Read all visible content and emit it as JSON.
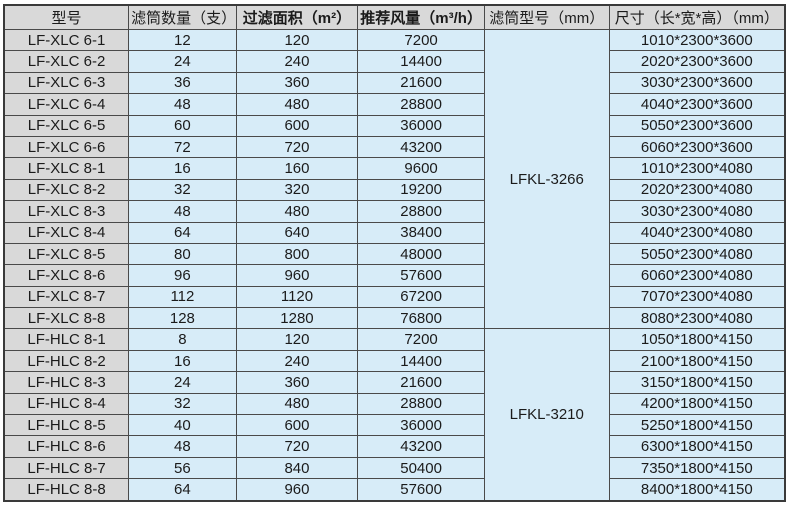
{
  "colors": {
    "header_bg": "#d9d9d9",
    "model_col_bg": "#d9d9d9",
    "data_cell_bg": "#d7ecf8",
    "grid_border": "#4a4a4a",
    "outer_border": "#3a3a3a",
    "text": "#1b1b1b",
    "page_bg": "#ffffff"
  },
  "chart_data": {
    "type": "table",
    "columns": [
      "型号",
      "滤筒数量（支）",
      "过滤面积（m²）",
      "推荐风量（m³/h）",
      "滤筒型号（mm）",
      "尺寸（长*宽*高）（mm）"
    ],
    "bold_columns": [
      2,
      3
    ],
    "groups": [
      {
        "cartridge_model": "LFKL-3266",
        "rows": [
          [
            "LF-XLC 6-1",
            "12",
            "120",
            "7200",
            "1010*2300*3600"
          ],
          [
            "LF-XLC 6-2",
            "24",
            "240",
            "14400",
            "2020*2300*3600"
          ],
          [
            "LF-XLC 6-3",
            "36",
            "360",
            "21600",
            "3030*2300*3600"
          ],
          [
            "LF-XLC 6-4",
            "48",
            "480",
            "28800",
            "4040*2300*3600"
          ],
          [
            "LF-XLC 6-5",
            "60",
            "600",
            "36000",
            "5050*2300*3600"
          ],
          [
            "LF-XLC 6-6",
            "72",
            "720",
            "43200",
            "6060*2300*3600"
          ],
          [
            "LF-XLC 8-1",
            "16",
            "160",
            "9600",
            "1010*2300*4080"
          ],
          [
            "LF-XLC 8-2",
            "32",
            "320",
            "19200",
            "2020*2300*4080"
          ],
          [
            "LF-XLC 8-3",
            "48",
            "480",
            "28800",
            "3030*2300*4080"
          ],
          [
            "LF-XLC 8-4",
            "64",
            "640",
            "38400",
            "4040*2300*4080"
          ],
          [
            "LF-XLC 8-5",
            "80",
            "800",
            "48000",
            "5050*2300*4080"
          ],
          [
            "LF-XLC 8-6",
            "96",
            "960",
            "57600",
            "6060*2300*4080"
          ],
          [
            "LF-XLC 8-7",
            "112",
            "1120",
            "67200",
            "7070*2300*4080"
          ],
          [
            "LF-XLC 8-8",
            "128",
            "1280",
            "76800",
            "8080*2300*4080"
          ]
        ]
      },
      {
        "cartridge_model": "LFKL-3210",
        "rows": [
          [
            "LF-HLC 8-1",
            "8",
            "120",
            "7200",
            "1050*1800*4150"
          ],
          [
            "LF-HLC 8-2",
            "16",
            "240",
            "14400",
            "2100*1800*4150"
          ],
          [
            "LF-HLC 8-3",
            "24",
            "360",
            "21600",
            "3150*1800*4150"
          ],
          [
            "LF-HLC 8-4",
            "32",
            "480",
            "28800",
            "4200*1800*4150"
          ],
          [
            "LF-HLC 8-5",
            "40",
            "600",
            "36000",
            "5250*1800*4150"
          ],
          [
            "LF-HLC 8-6",
            "48",
            "720",
            "43200",
            "6300*1800*4150"
          ],
          [
            "LF-HLC 8-7",
            "56",
            "840",
            "50400",
            "7350*1800*4150"
          ],
          [
            "LF-HLC 8-8",
            "64",
            "960",
            "57600",
            "8400*1800*4150"
          ]
        ]
      }
    ]
  }
}
